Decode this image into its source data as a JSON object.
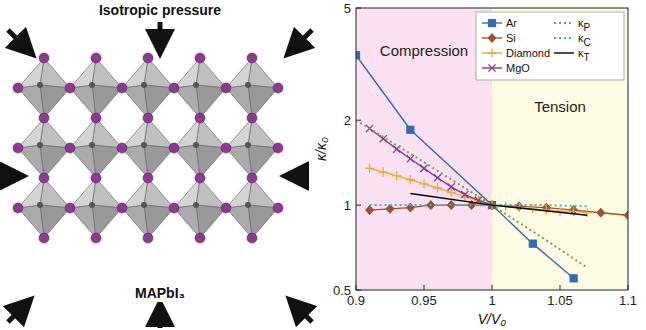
{
  "chart_data": {
    "type": "line",
    "x_label": "V/V₀",
    "y_label": "κ/κ₀",
    "xlim": [
      0.9,
      1.1
    ],
    "xticks": [
      0.9,
      0.95,
      1,
      1.05,
      1.1
    ],
    "ylim": [
      0.5,
      5
    ],
    "yticks": [
      0.5,
      1,
      2,
      5
    ],
    "log": "y",
    "legend": "upper right",
    "regions": [
      {
        "label": "Compression",
        "x": [
          0.9,
          1.0
        ],
        "color": "#f9e1f2"
      },
      {
        "label": "Tension",
        "x": [
          1.0,
          1.1
        ],
        "color": "#fdfbe3"
      }
    ],
    "series": [
      {
        "name": "Ar",
        "color": "#2f6db5",
        "marker": "square",
        "line_style": "solid",
        "x": [
          0.9,
          0.94,
          1.0,
          1.03,
          1.06
        ],
        "values": [
          3.4,
          1.85,
          1.0,
          0.73,
          0.55
        ]
      },
      {
        "name": "Si",
        "color": "#a0522d",
        "marker": "diamond",
        "line_style": "solid",
        "x": [
          0.91,
          0.925,
          0.94,
          0.955,
          0.97,
          0.985,
          1.0,
          1.02,
          1.04,
          1.06,
          1.08,
          1.1
        ],
        "values": [
          0.96,
          0.97,
          0.98,
          1.0,
          1.0,
          1.0,
          1.0,
          0.99,
          0.98,
          0.96,
          0.94,
          0.92
        ]
      },
      {
        "name": "Diamond",
        "color": "#f0a830",
        "marker": "plus",
        "line_style": "solid",
        "x": [
          0.91,
          0.92,
          0.93,
          0.94,
          0.95,
          0.96,
          0.97,
          0.98,
          0.99,
          1.0,
          1.01,
          1.02,
          1.03,
          1.04,
          1.05,
          1.06,
          1.07
        ],
        "values": [
          1.35,
          1.31,
          1.27,
          1.23,
          1.19,
          1.15,
          1.11,
          1.07,
          1.04,
          1.0,
          0.99,
          0.98,
          0.97,
          0.96,
          0.95,
          0.95,
          0.94
        ]
      },
      {
        "name": "MgO",
        "color": "#8b3a8b",
        "marker": "x",
        "line_style": "solid",
        "x": [
          0.91,
          0.92,
          0.93,
          0.94,
          0.95,
          0.96,
          0.97,
          0.98,
          0.99,
          1.0
        ],
        "values": [
          1.87,
          1.72,
          1.58,
          1.46,
          1.35,
          1.25,
          1.16,
          1.09,
          1.04,
          1.0
        ]
      },
      {
        "name": "κP",
        "color": "#6aa84f",
        "marker": "none",
        "line_style": "dotted",
        "x": [
          0.9,
          0.95,
          1.0,
          1.04,
          1.07
        ],
        "values": [
          2.0,
          1.42,
          1.0,
          0.75,
          0.6
        ]
      },
      {
        "name": "κC",
        "color": "#3fb0d8",
        "marker": "none",
        "line_style": "dotted",
        "x": [
          0.91,
          0.95,
          1.0,
          1.04,
          1.07
        ],
        "values": [
          1.0,
          1.0,
          1.0,
          1.0,
          0.99
        ]
      },
      {
        "name": "κT",
        "color": "#000000",
        "marker": "none",
        "line_style": "solid",
        "x": [
          0.94,
          1.0,
          1.07
        ],
        "values": [
          1.1,
          1.0,
          0.92
        ]
      }
    ]
  },
  "diagram": {
    "title": "Isotropic pressure",
    "label": "MAPbI₃"
  }
}
